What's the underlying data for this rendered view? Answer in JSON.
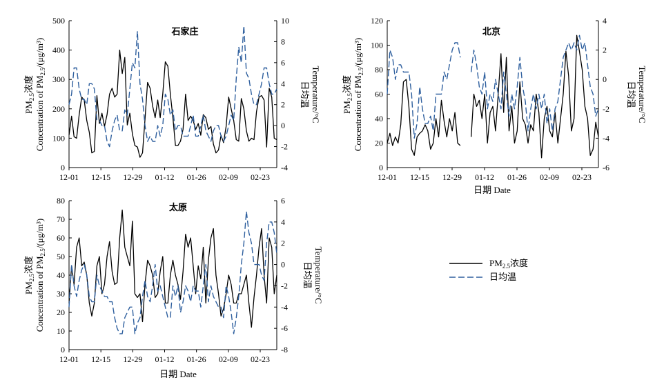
{
  "legend": {
    "pm_label": "PM",
    "pm_sub": "2.5",
    "pm_suffix": "浓度",
    "temp_label": "日均温"
  },
  "axis_text": {
    "left_cn": "PM",
    "left_cn_sub": "2.5",
    "left_cn_suffix": "浓度",
    "left_en": "Concentration of PM",
    "left_en_sub": "2.5",
    "left_en_suffix": "/(μg/m³)",
    "right_cn": "日均温",
    "right_en": "Temperature/°C",
    "x_label": "日期 Date"
  },
  "colors": {
    "pm": "#000000",
    "temp": "#2e5f9e"
  },
  "chart_data": [
    {
      "type": "line",
      "title": "石家庄",
      "x_ticks": [
        "12-01",
        "12-15",
        "12-29",
        "01-12",
        "01-26",
        "02-09",
        "02-23"
      ],
      "x_label": "",
      "y_left": {
        "lim": [
          0,
          500
        ],
        "ticks": [
          0,
          100,
          200,
          300,
          400,
          500
        ]
      },
      "y_right": {
        "lim": [
          -4,
          10
        ],
        "ticks": [
          -4,
          -2,
          0,
          2,
          4,
          6,
          8,
          10
        ]
      },
      "series": [
        {
          "name": "PM2.5浓度",
          "axis": "left",
          "style": "solid",
          "values": [
            110,
            175,
            105,
            100,
            180,
            240,
            230,
            160,
            120,
            50,
            55,
            245,
            150,
            185,
            140,
            180,
            250,
            270,
            240,
            250,
            400,
            320,
            375,
            145,
            185,
            115,
            75,
            70,
            35,
            50,
            165,
            290,
            270,
            210,
            170,
            230,
            170,
            250,
            360,
            345,
            250,
            170,
            75,
            75,
            90,
            130,
            250,
            160,
            175,
            160,
            130,
            150,
            110,
            180,
            170,
            130,
            140,
            80,
            50,
            60,
            110,
            85,
            140,
            240,
            200,
            160,
            95,
            90,
            235,
            200,
            125,
            90,
            100,
            95,
            190,
            240,
            245,
            230,
            70,
            270,
            240,
            100,
            95
          ]
        },
        {
          "name": "日均温",
          "axis": "right",
          "style": "dashed",
          "values": [
            2,
            3,
            5.5,
            5.5,
            3.5,
            2.5,
            2.5,
            2,
            4,
            4,
            3.5,
            0.5,
            0.5,
            0,
            0,
            -1.5,
            -2,
            -0.5,
            0.5,
            1,
            -0.5,
            -0.5,
            1.5,
            1,
            3.5,
            6,
            5.5,
            9,
            4,
            2.5,
            0,
            -1.5,
            -1,
            -1.5,
            -1.5,
            0,
            -1,
            0,
            3,
            2.5,
            1,
            1.5,
            -0.5,
            0,
            0,
            -1,
            -1,
            -1,
            0,
            1,
            -1,
            -1,
            0,
            1,
            -0.5,
            -1,
            -1.5,
            -0.5,
            0,
            0,
            -1,
            -1.5,
            -1,
            0,
            1,
            0.5,
            4.5,
            7.5,
            6,
            9.5,
            5,
            4.5,
            3,
            2,
            2,
            3,
            4,
            5.5,
            5.5,
            4,
            3,
            3,
            3.5
          ]
        }
      ]
    },
    {
      "type": "line",
      "title": "北京",
      "x_ticks": [
        "12-01",
        "12-15",
        "12-29",
        "01-12",
        "01-26",
        "02-09",
        "02-23"
      ],
      "x_label": "日期 Date",
      "y_left": {
        "lim": [
          0,
          120
        ],
        "ticks": [
          0,
          20,
          40,
          60,
          80,
          100,
          120
        ]
      },
      "y_right": {
        "lim": [
          -6,
          4
        ],
        "ticks": [
          -6,
          -4,
          -2,
          0,
          2,
          4
        ]
      },
      "series": [
        {
          "name": "PM2.5浓度",
          "axis": "left",
          "style": "solid",
          "values": [
            20,
            28,
            18,
            25,
            20,
            35,
            70,
            72,
            50,
            15,
            10,
            25,
            28,
            30,
            35,
            30,
            15,
            20,
            40,
            25,
            55,
            38,
            25,
            40,
            30,
            45,
            20,
            18,
            null,
            null,
            null,
            25,
            60,
            50,
            55,
            40,
            60,
            20,
            45,
            50,
            30,
            60,
            93,
            45,
            90,
            30,
            50,
            20,
            30,
            70,
            40,
            35,
            20,
            35,
            30,
            60,
            45,
            8,
            40,
            50,
            30,
            25,
            45,
            20,
            40,
            60,
            95,
            75,
            30,
            40,
            108,
            95,
            80,
            50,
            40,
            10,
            15,
            37,
            25
          ]
        },
        {
          "name": "日均温",
          "axis": "right",
          "style": "dashed",
          "values": [
            -1,
            2,
            1.5,
            0,
            1,
            1,
            0.5,
            0.5,
            0.5,
            -1,
            -4,
            -3,
            -0.5,
            -2,
            -3,
            -3,
            -2.5,
            -3.5,
            -1,
            -1,
            -1,
            0.5,
            0,
            1,
            2,
            2.5,
            2.5,
            1.5,
            null,
            null,
            null,
            0.5,
            2,
            1,
            -0.5,
            -1,
            0.5,
            -2,
            -1,
            -1.5,
            0,
            -1,
            -2,
            0.5,
            -1,
            -2.5,
            -1,
            -2,
            -0.5,
            1.5,
            -0.5,
            -1.5,
            -3.5,
            -2,
            -1,
            -2,
            -1,
            -2,
            -1,
            -3,
            -2,
            -3.5,
            -2,
            -1.5,
            0,
            1.5,
            2,
            2.5,
            2,
            2.5,
            2,
            3,
            2,
            2.5,
            1,
            -0.5,
            -1,
            -2.5,
            -2
          ]
        }
      ]
    },
    {
      "type": "line",
      "title": "太原",
      "x_ticks": [
        "12-01",
        "12-15",
        "12-29",
        "01-12",
        "01-26",
        "02-09",
        "02-23"
      ],
      "x_label": "日期 Date",
      "y_left": {
        "lim": [
          0,
          80
        ],
        "ticks": [
          0,
          10,
          20,
          30,
          40,
          50,
          60,
          70,
          80
        ]
      },
      "y_right": {
        "lim": [
          -8,
          6
        ],
        "ticks": [
          -8,
          -6,
          -4,
          -2,
          0,
          2,
          4,
          6
        ]
      },
      "series": [
        {
          "name": "PM2.5浓度",
          "axis": "left",
          "style": "solid",
          "values": [
            25,
            45,
            35,
            55,
            60,
            45,
            47,
            40,
            25,
            18,
            25,
            45,
            50,
            30,
            35,
            50,
            58,
            42,
            35,
            36,
            60,
            75,
            55,
            50,
            45,
            69,
            30,
            28,
            30,
            15,
            35,
            48,
            45,
            40,
            28,
            30,
            42,
            50,
            25,
            25,
            40,
            48,
            40,
            35,
            27,
            42,
            62,
            55,
            60,
            45,
            30,
            45,
            38,
            55,
            25,
            48,
            60,
            65,
            40,
            30,
            18,
            22,
            30,
            40,
            35,
            25,
            25,
            30,
            30,
            35,
            40,
            25,
            12,
            28,
            40,
            55,
            65,
            40,
            25,
            60,
            55,
            30,
            40
          ]
        },
        {
          "name": "日均温",
          "axis": "right",
          "style": "dashed",
          "values": [
            -4,
            0,
            -2,
            -3,
            -1.5,
            -0.5,
            0,
            -1,
            -3,
            -3.5,
            -3.5,
            -1,
            -2,
            -2.5,
            -3,
            -3,
            -3.5,
            -3.5,
            -5,
            -6,
            -6.5,
            -6.5,
            -5,
            -4.5,
            -4,
            -4,
            -6.5,
            -5.5,
            -5,
            -3,
            -1.5,
            -3,
            -3.5,
            -2,
            0,
            -2.5,
            -2,
            -3,
            -4,
            -5,
            -5,
            -2,
            -3,
            -2,
            -4.5,
            -3.5,
            -2,
            -2.5,
            -3.5,
            -2,
            -2.5,
            -2.5,
            -4,
            -2,
            0,
            -3.5,
            -2,
            -3,
            -3.5,
            -4,
            -4,
            -5,
            -2,
            -3,
            -4.5,
            -6.5,
            -5,
            -3,
            0,
            2,
            5,
            3,
            2,
            0,
            0,
            0,
            -1,
            -1.5,
            2,
            4,
            4,
            3,
            1
          ]
        }
      ]
    }
  ]
}
